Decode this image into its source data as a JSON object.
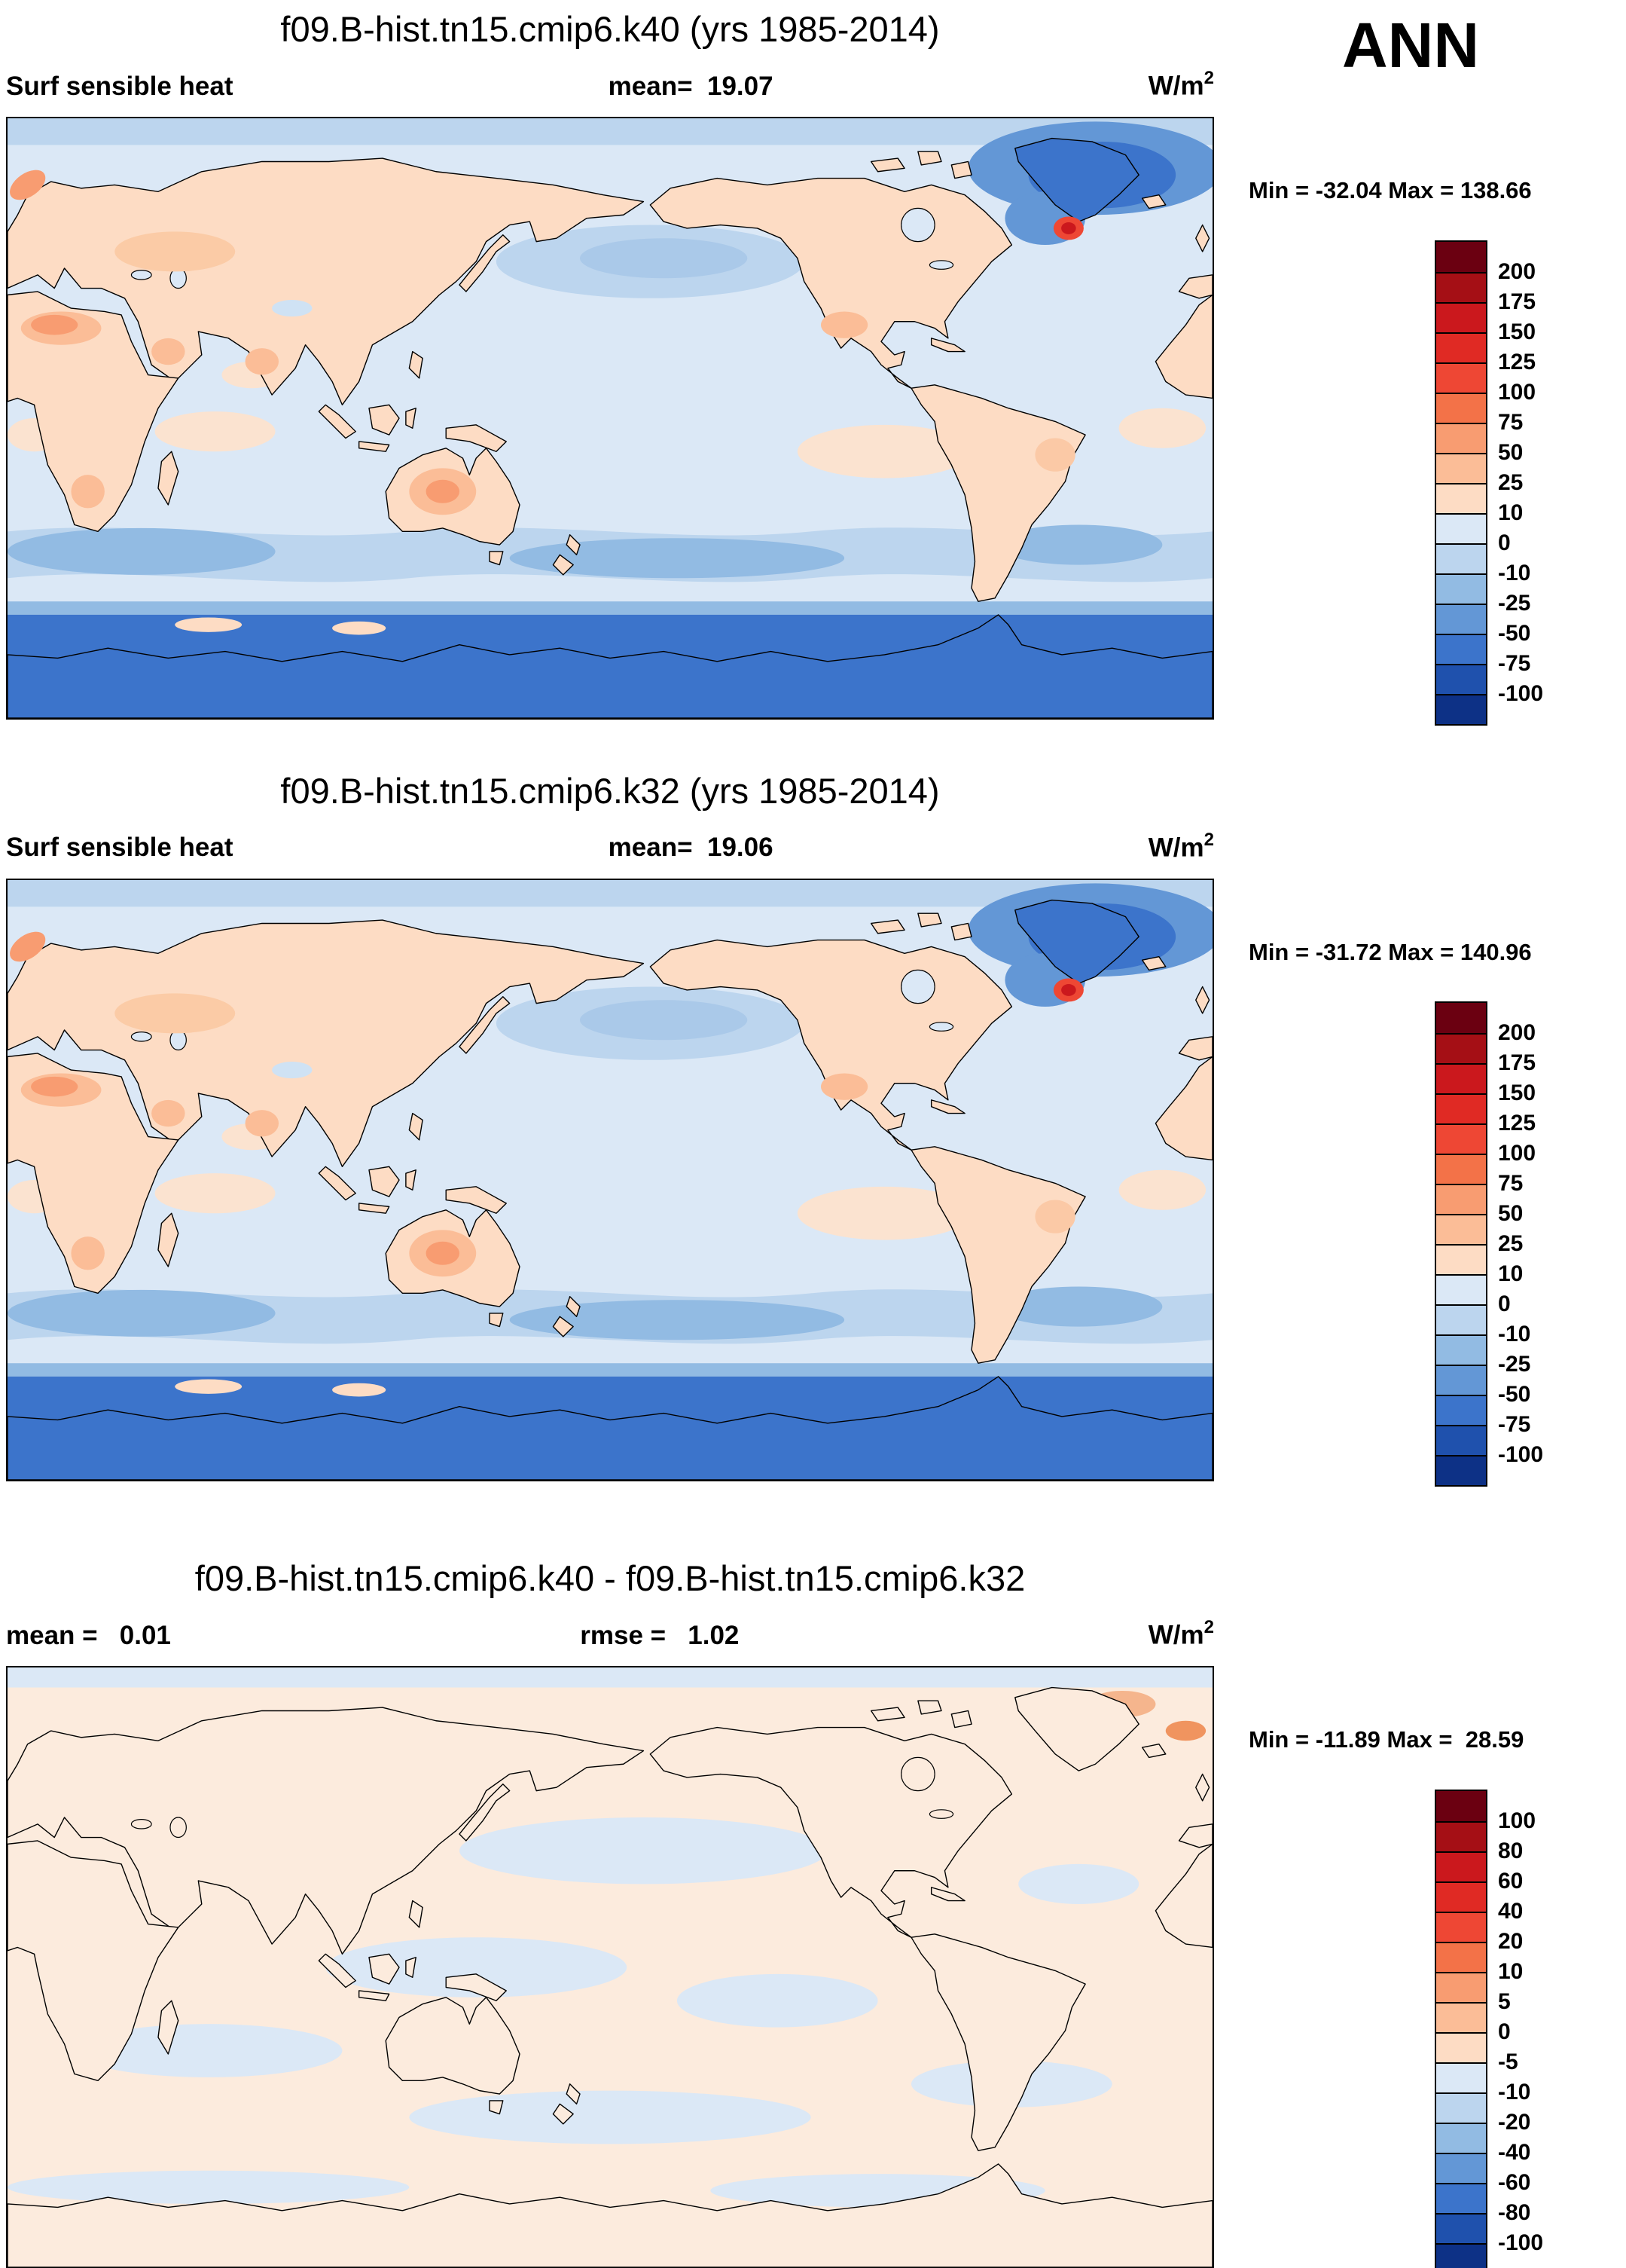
{
  "season_label": "ANN",
  "panels": [
    {
      "id": "k40",
      "title": "f09.B-hist.tn15.cmip6.k40 (yrs 1985-2014)",
      "stat_left": "Surf sensible heat",
      "stat_center": "mean=  19.07",
      "units_base": "W/m",
      "units_exp": "2",
      "minmax": "Min = -32.04 Max = 138.66",
      "map_style": "full",
      "colorbar": {
        "tick_labels": [
          "200",
          "175",
          "150",
          "125",
          "100",
          "75",
          "50",
          "25",
          "10",
          "0",
          "-10",
          "-25",
          "-50",
          "-75",
          "-100"
        ],
        "cell_colors": [
          "#6b0011",
          "#a50f15",
          "#cb181d",
          "#e02a24",
          "#ee4734",
          "#f37248",
          "#f89c71",
          "#fbbd97",
          "#fddcc4",
          "#dbe8f6",
          "#bcd5ee",
          "#92bbe3",
          "#6397d6",
          "#3c74cb",
          "#1f51ad",
          "#0d3186"
        ]
      }
    },
    {
      "id": "k32",
      "title": "f09.B-hist.tn15.cmip6.k32 (yrs 1985-2014)",
      "stat_left": "Surf sensible heat",
      "stat_center": "mean=  19.06",
      "units_base": "W/m",
      "units_exp": "2",
      "minmax": "Min = -31.72 Max = 140.96",
      "map_style": "full",
      "colorbar": {
        "tick_labels": [
          "200",
          "175",
          "150",
          "125",
          "100",
          "75",
          "50",
          "25",
          "10",
          "0",
          "-10",
          "-25",
          "-50",
          "-75",
          "-100"
        ],
        "cell_colors": [
          "#6b0011",
          "#a50f15",
          "#cb181d",
          "#e02a24",
          "#ee4734",
          "#f37248",
          "#f89c71",
          "#fbbd97",
          "#fddcc4",
          "#dbe8f6",
          "#bcd5ee",
          "#92bbe3",
          "#6397d6",
          "#3c74cb",
          "#1f51ad",
          "#0d3186"
        ]
      }
    },
    {
      "id": "diff",
      "title": "f09.B-hist.tn15.cmip6.k40 - f09.B-hist.tn15.cmip6.k32",
      "stat_left": "mean =   0.01",
      "stat_center": "rmse =   1.02",
      "units_base": "W/m",
      "units_exp": "2",
      "minmax": "Min = -11.89 Max =  28.59",
      "map_style": "diff",
      "colorbar": {
        "tick_labels": [
          "100",
          "80",
          "60",
          "40",
          "20",
          "10",
          "5",
          "0",
          "-5",
          "-10",
          "-20",
          "-40",
          "-60",
          "-80",
          "-100"
        ],
        "cell_colors": [
          "#6b0011",
          "#a50f15",
          "#cb181d",
          "#e02a24",
          "#ee4734",
          "#f37248",
          "#f89c71",
          "#fbbd97",
          "#fddcc4",
          "#dbe8f6",
          "#bcd5ee",
          "#92bbe3",
          "#6397d6",
          "#3c74cb",
          "#1f51ad",
          "#0d3186"
        ]
      }
    }
  ],
  "chart_data": [
    {
      "type": "heatmap",
      "subtype": "global-latlon-contour-map",
      "title": "f09.B-hist.tn15.cmip6.k40 (yrs 1985-2014)",
      "variable": "Surf sensible heat",
      "season": "ANN",
      "units": "W/m2",
      "mean": 19.07,
      "min": -32.04,
      "max": 138.66,
      "contour_levels": [
        200,
        175,
        150,
        125,
        100,
        75,
        50,
        25,
        10,
        0,
        -10,
        -25,
        -50,
        -75,
        -100
      ],
      "palette_top_to_bottom": [
        "#6b0011",
        "#a50f15",
        "#cb181d",
        "#e02a24",
        "#ee4734",
        "#f37248",
        "#f89c71",
        "#fbbd97",
        "#fddcc4",
        "#dbe8f6",
        "#bcd5ee",
        "#92bbe3",
        "#6397d6",
        "#3c74cb",
        "#1f51ad",
        "#0d3186"
      ],
      "legend_position": "right",
      "notes": "Land mostly 10-50 W/m2 (peach), oceans 0-10 (pale blue), Antarctica and subpolar North Atlantic/Greenland strongly negative (blue), local maximum (red) off southeast Greenland"
    },
    {
      "type": "heatmap",
      "subtype": "global-latlon-contour-map",
      "title": "f09.B-hist.tn15.cmip6.k32 (yrs 1985-2014)",
      "variable": "Surf sensible heat",
      "season": "ANN",
      "units": "W/m2",
      "mean": 19.06,
      "min": -31.72,
      "max": 140.96,
      "contour_levels": [
        200,
        175,
        150,
        125,
        100,
        75,
        50,
        25,
        10,
        0,
        -10,
        -25,
        -50,
        -75,
        -100
      ],
      "palette_top_to_bottom": [
        "#6b0011",
        "#a50f15",
        "#cb181d",
        "#e02a24",
        "#ee4734",
        "#f37248",
        "#f89c71",
        "#fbbd97",
        "#fddcc4",
        "#dbe8f6",
        "#bcd5ee",
        "#92bbe3",
        "#6397d6",
        "#3c74cb",
        "#1f51ad",
        "#0d3186"
      ],
      "legend_position": "right",
      "notes": "Pattern nearly identical to k40 panel"
    },
    {
      "type": "heatmap",
      "subtype": "global-latlon-contour-map",
      "title": "f09.B-hist.tn15.cmip6.k40 - f09.B-hist.tn15.cmip6.k32",
      "variable": "Surf sensible heat difference",
      "season": "ANN",
      "units": "W/m2",
      "mean": 0.01,
      "rmse": 1.02,
      "min": -11.89,
      "max": 28.59,
      "contour_levels": [
        100,
        80,
        60,
        40,
        20,
        10,
        5,
        0,
        -5,
        -10,
        -20,
        -40,
        -60,
        -80,
        -100
      ],
      "palette_top_to_bottom": [
        "#6b0011",
        "#a50f15",
        "#cb181d",
        "#e02a24",
        "#ee4734",
        "#f37248",
        "#f89c71",
        "#fbbd97",
        "#fddcc4",
        "#dbe8f6",
        "#bcd5ee",
        "#92bbe3",
        "#6397d6",
        "#3c74cb",
        "#1f51ad",
        "#0d3186"
      ],
      "legend_position": "right",
      "notes": "Differences near zero: pale peach (0 to 5) and pale blue (-5 to 0) patches only"
    }
  ]
}
